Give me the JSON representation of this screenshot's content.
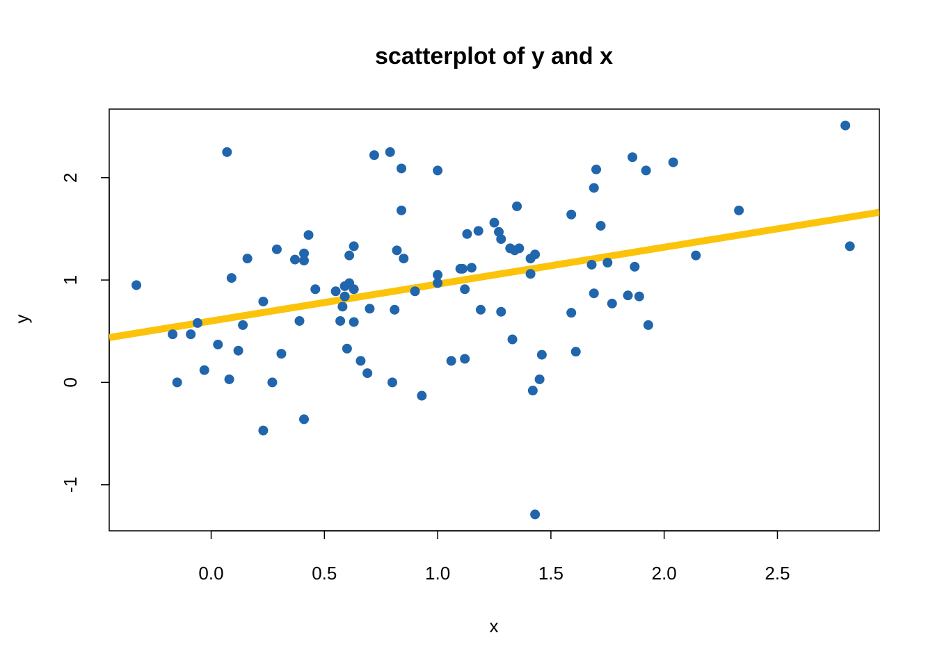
{
  "chart_data": {
    "type": "scatter",
    "title": "scatterplot of y and x",
    "xlabel": "x",
    "ylabel": "y",
    "xlim": [
      -0.45,
      2.95
    ],
    "ylim": [
      -1.45,
      2.67
    ],
    "xticks": [
      0.0,
      0.5,
      1.0,
      1.5,
      2.0,
      2.5
    ],
    "xtick_labels": [
      "0.0",
      "0.5",
      "1.0",
      "1.5",
      "2.0",
      "2.5"
    ],
    "yticks": [
      -1,
      0,
      1,
      2
    ],
    "ytick_labels": [
      "-1",
      "0",
      "1",
      "2"
    ],
    "grid": false,
    "point_color": "#2166ac",
    "line_color": "#fcc30b",
    "regression_line": {
      "intercept": 0.6,
      "slope": 0.36
    },
    "points": [
      [
        -0.33,
        0.95
      ],
      [
        0.07,
        2.25
      ],
      [
        0.09,
        1.02
      ],
      [
        -0.17,
        0.47
      ],
      [
        -0.15,
        0.0
      ],
      [
        -0.09,
        0.47
      ],
      [
        -0.06,
        0.58
      ],
      [
        -0.03,
        0.12
      ],
      [
        0.03,
        0.37
      ],
      [
        0.08,
        0.03
      ],
      [
        0.12,
        0.31
      ],
      [
        0.14,
        0.56
      ],
      [
        0.16,
        1.21
      ],
      [
        0.23,
        0.79
      ],
      [
        0.23,
        -0.47
      ],
      [
        0.27,
        0.0
      ],
      [
        0.29,
        1.3
      ],
      [
        0.31,
        0.28
      ],
      [
        0.37,
        1.2
      ],
      [
        0.39,
        0.6
      ],
      [
        0.41,
        1.26
      ],
      [
        0.41,
        1.19
      ],
      [
        0.41,
        -0.36
      ],
      [
        0.43,
        1.44
      ],
      [
        0.46,
        0.91
      ],
      [
        0.55,
        0.89
      ],
      [
        0.57,
        0.6
      ],
      [
        0.58,
        0.74
      ],
      [
        0.59,
        0.84
      ],
      [
        0.59,
        0.94
      ],
      [
        0.6,
        0.33
      ],
      [
        0.61,
        0.97
      ],
      [
        0.61,
        1.24
      ],
      [
        0.63,
        0.59
      ],
      [
        0.63,
        0.91
      ],
      [
        0.63,
        1.33
      ],
      [
        0.66,
        0.21
      ],
      [
        0.69,
        0.09
      ],
      [
        0.7,
        0.72
      ],
      [
        0.72,
        2.22
      ],
      [
        0.79,
        2.25
      ],
      [
        0.8,
        0.0
      ],
      [
        0.81,
        0.71
      ],
      [
        0.82,
        1.29
      ],
      [
        0.84,
        2.09
      ],
      [
        0.84,
        1.68
      ],
      [
        0.85,
        1.21
      ],
      [
        0.9,
        0.89
      ],
      [
        0.93,
        -0.13
      ],
      [
        1.0,
        2.07
      ],
      [
        1.0,
        1.05
      ],
      [
        1.0,
        0.97
      ],
      [
        1.06,
        0.21
      ],
      [
        1.1,
        1.11
      ],
      [
        1.11,
        1.11
      ],
      [
        1.12,
        0.91
      ],
      [
        1.12,
        0.23
      ],
      [
        1.13,
        1.45
      ],
      [
        1.15,
        1.12
      ],
      [
        1.18,
        1.48
      ],
      [
        1.19,
        0.71
      ],
      [
        1.25,
        1.56
      ],
      [
        1.27,
        1.47
      ],
      [
        1.28,
        1.4
      ],
      [
        1.28,
        0.69
      ],
      [
        1.32,
        1.31
      ],
      [
        1.33,
        0.42
      ],
      [
        1.34,
        1.29
      ],
      [
        1.36,
        1.31
      ],
      [
        1.35,
        1.72
      ],
      [
        1.41,
        1.21
      ],
      [
        1.41,
        1.06
      ],
      [
        1.42,
        -0.08
      ],
      [
        1.43,
        1.25
      ],
      [
        1.43,
        -1.29
      ],
      [
        1.45,
        0.03
      ],
      [
        1.46,
        0.27
      ],
      [
        1.59,
        1.64
      ],
      [
        1.59,
        0.68
      ],
      [
        1.61,
        0.3
      ],
      [
        1.68,
        1.15
      ],
      [
        1.69,
        0.87
      ],
      [
        1.69,
        1.9
      ],
      [
        1.7,
        2.08
      ],
      [
        1.72,
        1.53
      ],
      [
        1.75,
        1.17
      ],
      [
        1.77,
        0.77
      ],
      [
        1.84,
        0.85
      ],
      [
        1.86,
        2.2
      ],
      [
        1.87,
        1.13
      ],
      [
        1.89,
        0.84
      ],
      [
        1.92,
        2.07
      ],
      [
        1.93,
        0.56
      ],
      [
        2.04,
        2.15
      ],
      [
        2.14,
        1.24
      ],
      [
        2.33,
        1.68
      ],
      [
        2.8,
        2.51
      ],
      [
        2.82,
        1.33
      ]
    ]
  }
}
